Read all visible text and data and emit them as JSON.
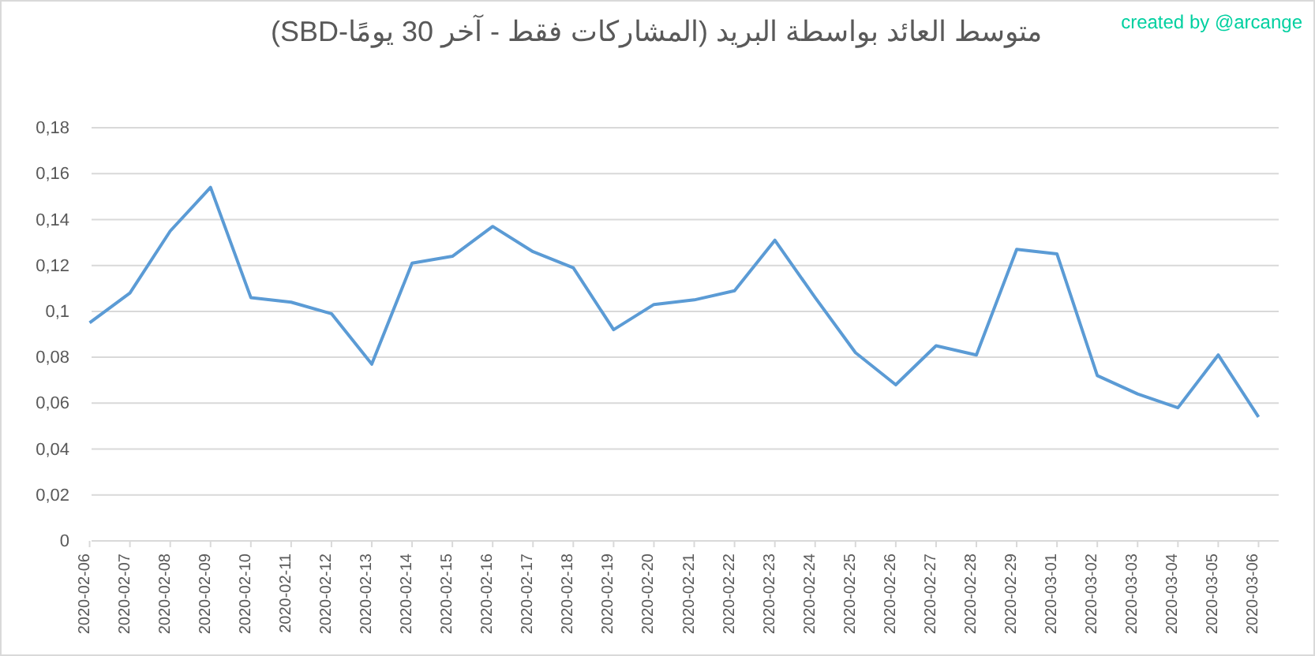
{
  "chart_data": {
    "type": "line",
    "title": "متوسط العائد بواسطة البريد (المشاركات فقط - آخر 30 يومًا-SBD)",
    "annotations": [
      "created by @arcange"
    ],
    "categories": [
      "2020-02-06",
      "2020-02-07",
      "2020-02-08",
      "2020-02-09",
      "2020-02-10",
      "2020-02-11",
      "2020-02-12",
      "2020-02-13",
      "2020-02-14",
      "2020-02-15",
      "2020-02-16",
      "2020-02-17",
      "2020-02-18",
      "2020-02-19",
      "2020-02-20",
      "2020-02-21",
      "2020-02-22",
      "2020-02-23",
      "2020-02-24",
      "2020-02-25",
      "2020-02-26",
      "2020-02-27",
      "2020-02-28",
      "2020-02-29",
      "2020-03-01",
      "2020-03-02",
      "2020-03-03",
      "2020-03-04",
      "2020-03-05",
      "2020-03-06"
    ],
    "series": [
      {
        "color": "#5b9bd5",
        "values": [
          0.095,
          0.108,
          0.135,
          0.154,
          0.106,
          0.104,
          0.099,
          0.077,
          0.121,
          0.124,
          0.137,
          0.126,
          0.119,
          0.092,
          0.103,
          0.105,
          0.109,
          0.131,
          0.106,
          0.082,
          0.068,
          0.085,
          0.081,
          0.127,
          0.125,
          0.072,
          0.064,
          0.058,
          0.081,
          0.054
        ]
      }
    ],
    "ylim": [
      0,
      0.18
    ],
    "yticks": [
      {
        "value": 0,
        "label": "0"
      },
      {
        "value": 0.02,
        "label": "0,02"
      },
      {
        "value": 0.04,
        "label": "0,04"
      },
      {
        "value": 0.06,
        "label": "0,06"
      },
      {
        "value": 0.08,
        "label": "0,08"
      },
      {
        "value": 0.1,
        "label": "0,1"
      },
      {
        "value": 0.12,
        "label": "0,12"
      },
      {
        "value": 0.14,
        "label": "0,14"
      },
      {
        "value": 0.16,
        "label": "0,16"
      },
      {
        "value": 0.18,
        "label": "0,18"
      }
    ],
    "grid": "y",
    "marker": "none",
    "line_style": "solid"
  }
}
